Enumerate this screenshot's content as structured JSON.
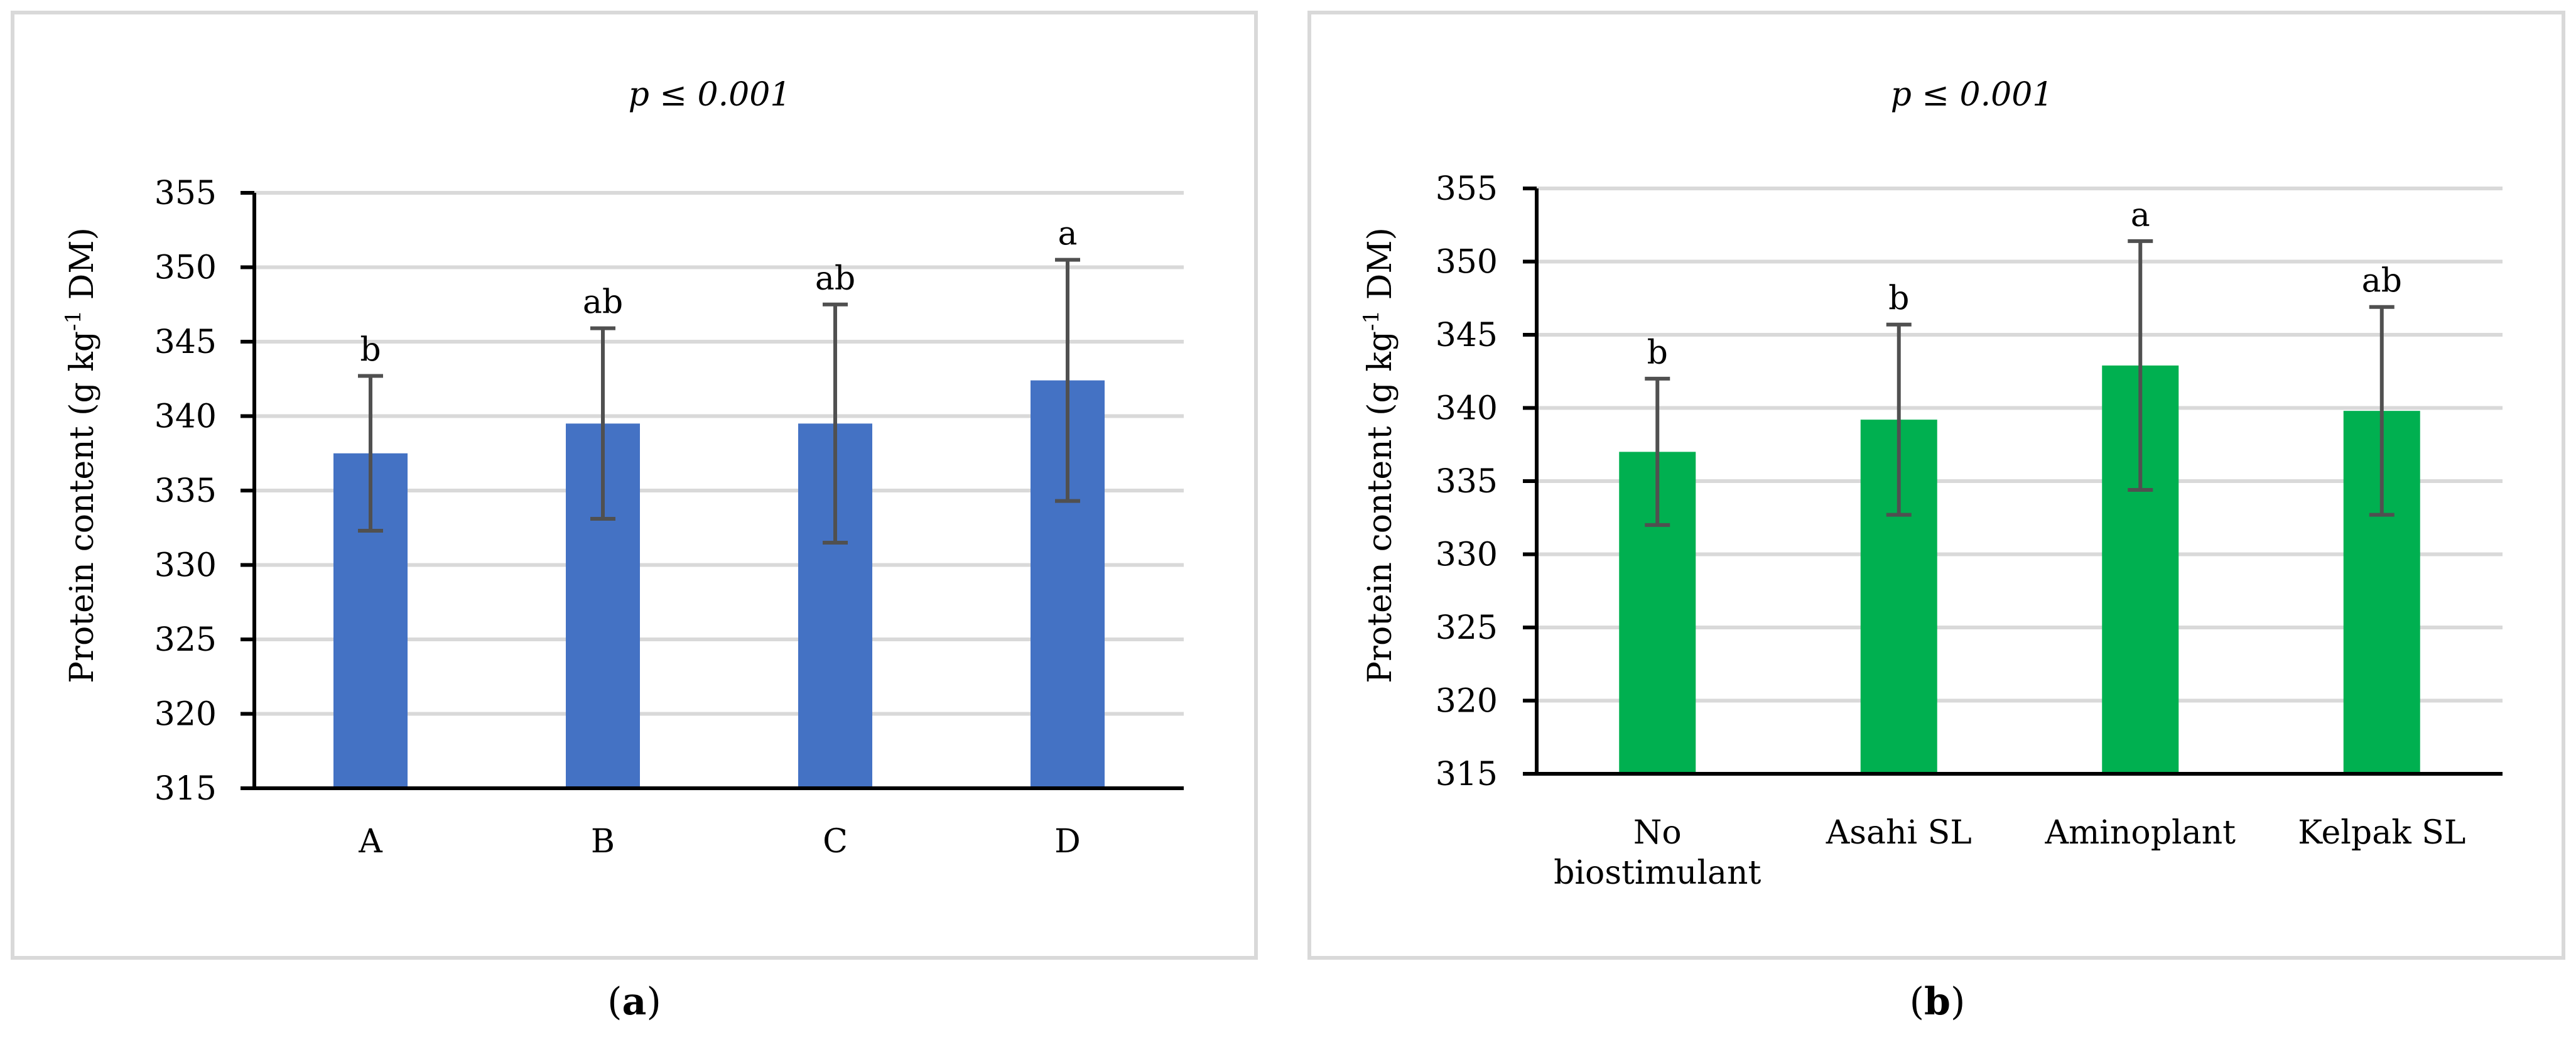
{
  "chart_data": [
    {
      "type": "bar",
      "panel_label": "a",
      "title": "p ≤ 0.001",
      "ylabel": "Protein content (g kg",
      "ylabel_sup": "-1",
      "ylabel_suffix": " DM)",
      "categories": [
        [
          "A"
        ],
        [
          "B"
        ],
        [
          "C"
        ],
        [
          "D"
        ]
      ],
      "values": [
        337.5,
        339.5,
        339.5,
        342.4
      ],
      "error": [
        5.2,
        6.4,
        8.0,
        8.1
      ],
      "letters": [
        "b",
        "ab",
        "ab",
        "a"
      ],
      "ylim": [
        315,
        355
      ],
      "yticks": [
        315,
        320,
        325,
        330,
        335,
        340,
        345,
        350,
        355
      ],
      "color": "#4472C4",
      "grid": true
    },
    {
      "type": "bar",
      "panel_label": "b",
      "title": "p ≤ 0.001",
      "ylabel": "Protein content (g kg",
      "ylabel_sup": "-1",
      "ylabel_suffix": " DM)",
      "categories": [
        [
          "No",
          "biostimulant"
        ],
        [
          "Asahi SL"
        ],
        [
          "Aminoplant"
        ],
        [
          "Kelpak SL"
        ]
      ],
      "values": [
        337.0,
        339.2,
        342.9,
        339.8
      ],
      "error": [
        5.0,
        6.5,
        8.5,
        7.1
      ],
      "letters": [
        "b",
        "b",
        "a",
        "ab"
      ],
      "ylim": [
        315,
        355
      ],
      "yticks": [
        315,
        320,
        325,
        330,
        335,
        340,
        345,
        350,
        355
      ],
      "color": "#00B050",
      "grid": true
    }
  ]
}
